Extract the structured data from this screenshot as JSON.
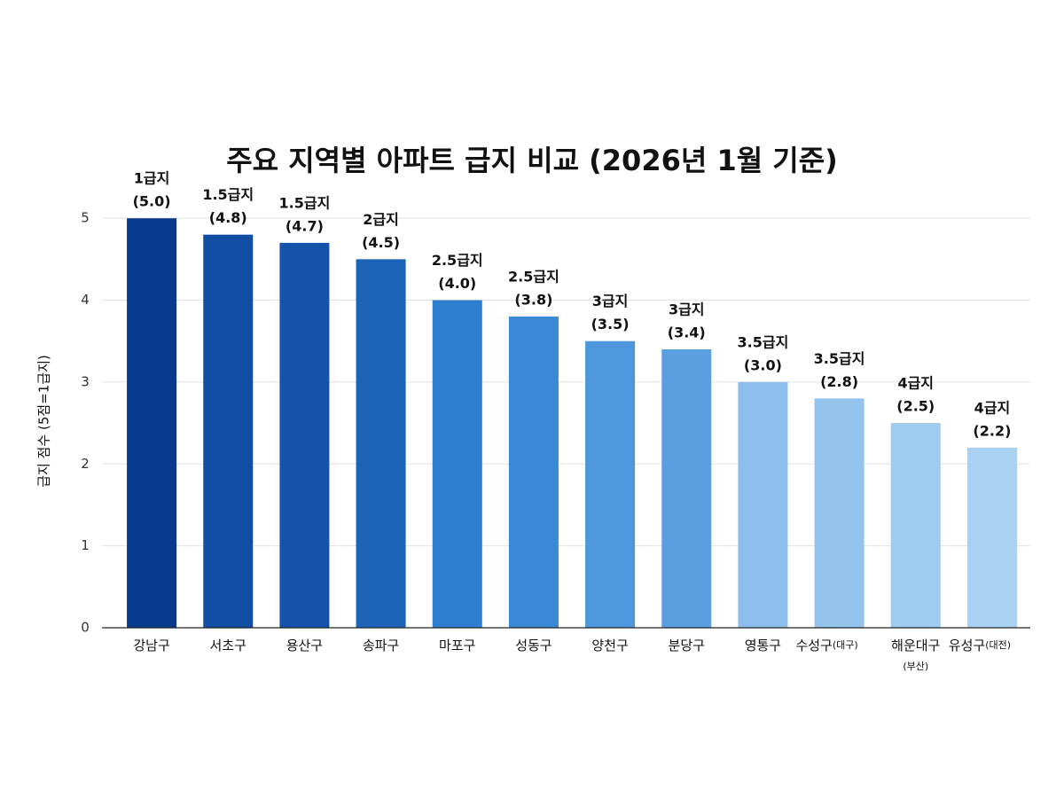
{
  "chart_data": {
    "type": "bar",
    "title": "주요 지역별 아파트 급지 비교 (2026년 1월 기준)",
    "y_label": "급지 점수 (5점=1급지)",
    "categories": [
      "강남구",
      "서초구",
      "용산구",
      "송파구",
      "마포구",
      "성동구",
      "양천구",
      "분당구",
      "영통구",
      "수성구",
      "해운대구",
      "유성구"
    ],
    "category_notes": [
      null,
      null,
      null,
      null,
      null,
      null,
      null,
      null,
      null,
      "(대구)",
      "(부산)",
      "(대전)"
    ],
    "values": [
      5.0,
      4.8,
      4.7,
      4.5,
      4.0,
      3.8,
      3.5,
      3.4,
      3.0,
      2.8,
      2.5,
      2.2
    ],
    "grades": [
      "1급지",
      "1.5급지",
      "1.5급지",
      "2급지",
      "2.5급지",
      "2.5급지",
      "3급지",
      "3급지",
      "3.5급지",
      "3.5급지",
      "4급지",
      "4급지"
    ],
    "value_labels": [
      "(5.0)",
      "(4.8)",
      "(4.7)",
      "(4.5)",
      "(4.0)",
      "(3.8)",
      "(3.5)",
      "(3.4)",
      "(3.0)",
      "(2.8)",
      "(2.5)",
      "(2.2)"
    ],
    "colors": [
      "#0a3a8c",
      "#114ea4",
      "#1454aa",
      "#1c64b8",
      "#2f7fd0",
      "#3a89d6",
      "#4f97dc",
      "#5aa0e0",
      "#8cbfed",
      "#93c4ee",
      "#9ecbf0",
      "#a8d1f2"
    ],
    "ylim": [
      0,
      5.5
    ],
    "yticks": [
      0,
      1,
      2,
      3,
      4,
      5
    ],
    "grid": true
  }
}
